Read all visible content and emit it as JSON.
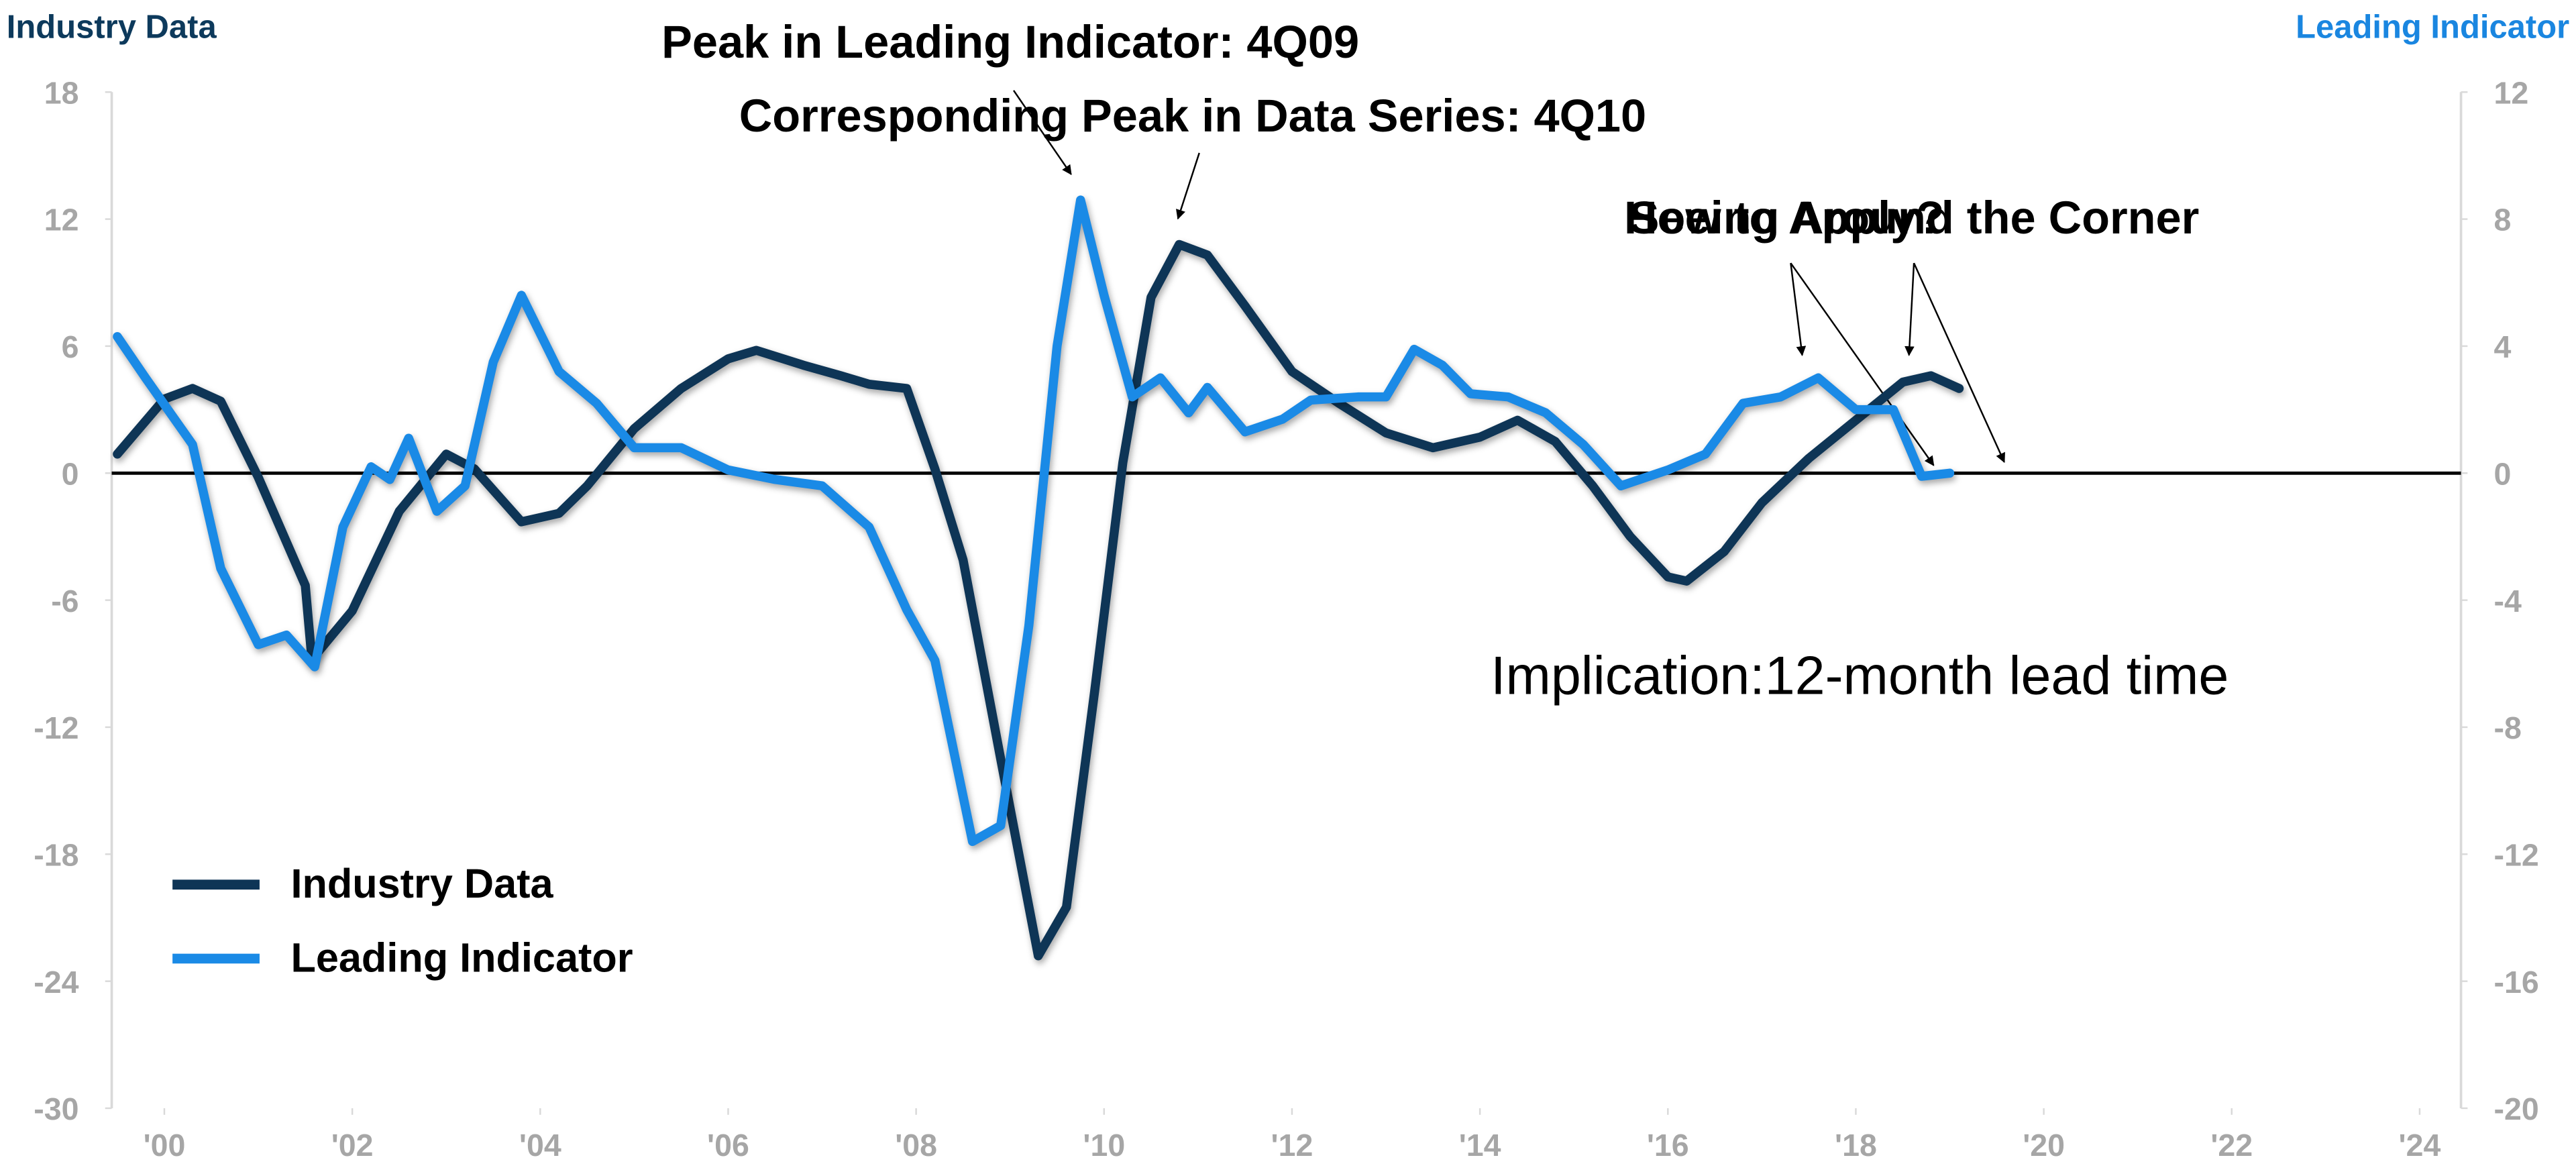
{
  "chart_data": {
    "type": "line",
    "y_label": "Industry Data",
    "y2_label": "Leading Indicator",
    "xlim": [
      1999.44,
      2024.44
    ],
    "xticks": [
      {
        "value": 2000,
        "label": "'00"
      },
      {
        "value": 2002,
        "label": "'02"
      },
      {
        "value": 2004,
        "label": "'04"
      },
      {
        "value": 2006,
        "label": "'06"
      },
      {
        "value": 2008,
        "label": "'08"
      },
      {
        "value": 2010,
        "label": "'10"
      },
      {
        "value": 2012,
        "label": "'12"
      },
      {
        "value": 2014,
        "label": "'14"
      },
      {
        "value": 2016,
        "label": "'16"
      },
      {
        "value": 2018,
        "label": "'18"
      },
      {
        "value": 2020,
        "label": "'20"
      },
      {
        "value": 2022,
        "label": "'22"
      },
      {
        "value": 2024,
        "label": "'24"
      }
    ],
    "ylim": [
      -30,
      18
    ],
    "yticks": [
      -30,
      -24,
      -18,
      -12,
      -6,
      0,
      6,
      12,
      18
    ],
    "y2lim": [
      -20,
      12
    ],
    "y2ticks": [
      -20,
      -16,
      -12,
      -8,
      -4,
      0,
      4,
      8,
      12
    ],
    "legend": "lower left",
    "annotations": [
      "Peak in Leading Indicator: 4Q09",
      "Corresponding Peak in Data Series: 4Q10",
      "Seeing Around the Corner",
      "How to Apply?",
      "Implication:12-month lead time"
    ],
    "series": [
      {
        "name": "Industry Data",
        "color": "#0e3556",
        "axis": "y",
        "x": [
          1999.5,
          2000.0,
          2000.3,
          2000.6,
          2001.0,
          2001.5,
          2001.57,
          2002.0,
          2002.5,
          2003.0,
          2003.3,
          2003.8,
          2004.2,
          2004.5,
          2005.0,
          2005.5,
          2006.0,
          2006.3,
          2006.8,
          2007.2,
          2007.5,
          2007.9,
          2008.2,
          2008.5,
          2008.9,
          2009.3,
          2009.6,
          2009.9,
          2010.2,
          2010.5,
          2010.8,
          2011.1,
          2011.5,
          2012.0,
          2012.5,
          2013.0,
          2013.5,
          2014.0,
          2014.4,
          2014.8,
          2015.2,
          2015.6,
          2016.0,
          2016.2,
          2016.6,
          2017.0,
          2017.5,
          2018.0,
          2018.5,
          2018.8,
          2019.1
        ],
        "values": [
          0.9,
          3.5,
          4.0,
          3.4,
          -0.2,
          -5.3,
          -8.8,
          -6.5,
          -1.8,
          0.9,
          0.2,
          -2.3,
          -1.9,
          -0.6,
          2.1,
          4.0,
          5.4,
          5.8,
          5.1,
          4.6,
          4.2,
          4.0,
          0.2,
          -4.1,
          -13.5,
          -22.8,
          -20.5,
          -10.3,
          0.5,
          8.3,
          10.8,
          10.3,
          7.9,
          4.8,
          3.3,
          1.9,
          1.2,
          1.7,
          2.5,
          1.5,
          -0.6,
          -3.0,
          -4.9,
          -5.1,
          -3.7,
          -1.4,
          0.7,
          2.5,
          4.3,
          4.6,
          4.0
        ]
      },
      {
        "name": "Leading Indicator",
        "color": "#1a8ae6",
        "axis": "y2",
        "x": [
          1999.5,
          1999.8,
          2000.3,
          2000.6,
          2001.0,
          2001.3,
          2001.6,
          2001.9,
          2002.2,
          2002.4,
          2002.6,
          2002.9,
          2003.2,
          2003.5,
          2003.8,
          2004.2,
          2004.6,
          2005.0,
          2005.5,
          2006.0,
          2006.5,
          2007.0,
          2007.5,
          2007.9,
          2008.2,
          2008.6,
          2008.9,
          2009.2,
          2009.5,
          2009.75,
          2010.0,
          2010.3,
          2010.6,
          2010.9,
          2011.1,
          2011.5,
          2011.9,
          2012.2,
          2012.7,
          2013.0,
          2013.3,
          2013.6,
          2013.9,
          2014.3,
          2014.7,
          2015.1,
          2015.5,
          2016.0,
          2016.4,
          2016.8,
          2017.2,
          2017.6,
          2018.0,
          2018.4,
          2018.7,
          2019.0
        ],
        "values": [
          4.3,
          3.0,
          0.9,
          -3.0,
          -5.4,
          -5.1,
          -6.1,
          -1.7,
          0.2,
          -0.2,
          1.1,
          -1.2,
          -0.4,
          3.5,
          5.6,
          3.2,
          2.2,
          0.8,
          0.8,
          0.1,
          -0.2,
          -0.4,
          -1.7,
          -4.3,
          -5.9,
          -11.6,
          -11.1,
          -4.8,
          4.0,
          8.6,
          5.6,
          2.4,
          3.0,
          1.9,
          2.7,
          1.3,
          1.7,
          2.3,
          2.4,
          2.4,
          3.9,
          3.4,
          2.5,
          2.4,
          1.9,
          0.9,
          -0.4,
          0.1,
          0.6,
          2.2,
          2.4,
          3.0,
          2.0,
          2.0,
          -0.1,
          0.0
        ]
      }
    ]
  }
}
